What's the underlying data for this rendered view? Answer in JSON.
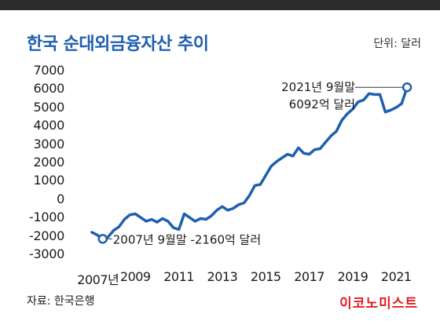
{
  "title": "한국 순대외금융자산 추이",
  "unit": "단위: 달러",
  "source": "자료: 한국은행",
  "brand": "이코노미스트",
  "chart_data": {
    "type": "line",
    "title": "한국 순대외금융자산 추이",
    "ylim": [
      -3000,
      7000
    ],
    "y_ticks": [
      "7000",
      "6000",
      "5000",
      "4000",
      "3000",
      "2000",
      "1000",
      "0",
      "-1000",
      "-2000",
      "-3000"
    ],
    "x_ticks": [
      {
        "label": "2007년",
        "x": 2007.5
      },
      {
        "label": "2009",
        "x": 2009
      },
      {
        "label": "2011",
        "x": 2011
      },
      {
        "label": "2013",
        "x": 2013
      },
      {
        "label": "2015",
        "x": 2015
      },
      {
        "label": "2017",
        "x": 2017
      },
      {
        "label": "2019",
        "x": 2019
      },
      {
        "label": "2021",
        "x": 2021
      }
    ],
    "xlim": [
      2006.75,
      2021.75
    ],
    "series": [
      {
        "color": "#1f5fb0",
        "x": [
          2007.0,
          2007.25,
          2007.5,
          2007.75,
          2008.0,
          2008.25,
          2008.5,
          2008.75,
          2009.0,
          2009.25,
          2009.5,
          2009.75,
          2010.0,
          2010.25,
          2010.5,
          2010.75,
          2011.0,
          2011.25,
          2011.5,
          2011.75,
          2012.0,
          2012.25,
          2012.5,
          2012.75,
          2013.0,
          2013.25,
          2013.5,
          2013.75,
          2014.0,
          2014.25,
          2014.5,
          2014.75,
          2015.0,
          2015.25,
          2015.5,
          2015.75,
          2016.0,
          2016.25,
          2016.5,
          2016.75,
          2017.0,
          2017.25,
          2017.5,
          2017.75,
          2018.0,
          2018.25,
          2018.5,
          2018.75,
          2019.0,
          2019.25,
          2019.5,
          2019.75,
          2020.0,
          2020.25,
          2020.5,
          2020.75,
          2021.0,
          2021.25,
          2021.5
        ],
        "values": [
          -1800,
          -1950,
          -2160,
          -2050,
          -1700,
          -1500,
          -1100,
          -850,
          -800,
          -1000,
          -1200,
          -1100,
          -1250,
          -1050,
          -1200,
          -1550,
          -1650,
          -800,
          -1000,
          -1200,
          -1050,
          -1100,
          -900,
          -600,
          -400,
          -600,
          -500,
          -300,
          -200,
          200,
          750,
          800,
          1300,
          1800,
          2050,
          2250,
          2450,
          2350,
          2800,
          2500,
          2450,
          2700,
          2750,
          3100,
          3450,
          3700,
          4300,
          4650,
          4900,
          5300,
          5400,
          5750,
          5700,
          5700,
          4750,
          4850,
          5000,
          5200,
          6092
        ]
      }
    ],
    "annotations": [
      {
        "line1": "2021년 9월말",
        "line2": "6092억 달러",
        "x": 2021.5,
        "y": 6092
      },
      {
        "text": "2007년 9월말 -2160억 달러",
        "x": 2007.5,
        "y": -2160
      }
    ]
  }
}
